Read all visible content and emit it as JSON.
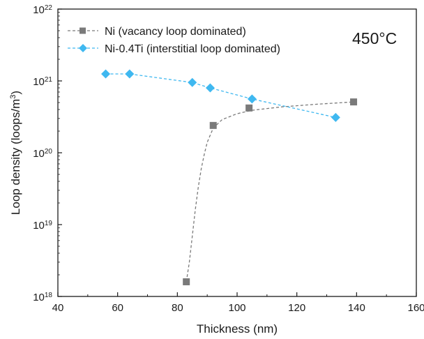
{
  "chart_data": {
    "type": "scatter",
    "title": "",
    "xlabel": "Thickness (nm)",
    "ylabel": {
      "base": "Loop density (loops/m",
      "sup": "3",
      "tail": ")"
    },
    "xlim": [
      40,
      160
    ],
    "ylim_log10": [
      18,
      22
    ],
    "y_scale": "log",
    "x_ticks": [
      40,
      60,
      80,
      100,
      120,
      140,
      160
    ],
    "y_ticks": [
      {
        "base": "10",
        "exp": "18",
        "log10": 18
      },
      {
        "base": "10",
        "exp": "19",
        "log10": 19
      },
      {
        "base": "10",
        "exp": "20",
        "log10": 20
      },
      {
        "base": "10",
        "exp": "21",
        "log10": 21
      },
      {
        "base": "10",
        "exp": "22",
        "log10": 22
      }
    ],
    "annotation": "450°C",
    "grid": false,
    "legend_position": "top-left",
    "series": [
      {
        "name": "Ni (vacancy loop dominated)",
        "marker": "square",
        "color": "#7a7a7a",
        "points": [
          {
            "x": 83,
            "y": 1.6e+18
          },
          {
            "x": 92,
            "y": 2.4e+20
          },
          {
            "x": 104,
            "y": 4.2e+20
          },
          {
            "x": 139,
            "y": 5.1e+20
          }
        ],
        "fit_curve": [
          {
            "x": 83,
            "y": 1.6e+18
          },
          {
            "x": 84,
            "y": 3e+18
          },
          {
            "x": 85,
            "y": 7e+18
          },
          {
            "x": 86,
            "y": 1.6e+19
          },
          {
            "x": 87,
            "y": 3.3e+19
          },
          {
            "x": 88,
            "y": 6e+19
          },
          {
            "x": 89,
            "y": 9.5e+19
          },
          {
            "x": 90,
            "y": 1.4e+20
          },
          {
            "x": 92,
            "y": 2.2e+20
          },
          {
            "x": 95,
            "y": 2.9e+20
          },
          {
            "x": 100,
            "y": 3.5e+20
          },
          {
            "x": 105,
            "y": 3.9e+20
          },
          {
            "x": 115,
            "y": 4.35e+20
          },
          {
            "x": 127,
            "y": 4.75e+20
          },
          {
            "x": 139,
            "y": 5.1e+20
          }
        ]
      },
      {
        "name": "Ni-0.4Ti (interstitial loop dominated)",
        "marker": "diamond",
        "color": "#3fb8f0",
        "points": [
          {
            "x": 56,
            "y": 1.25e+21
          },
          {
            "x": 64,
            "y": 1.25e+21
          },
          {
            "x": 85,
            "y": 9.5e+20
          },
          {
            "x": 91,
            "y": 8e+20
          },
          {
            "x": 105,
            "y": 5.6e+20
          },
          {
            "x": 133,
            "y": 3.1e+20
          }
        ]
      }
    ]
  }
}
